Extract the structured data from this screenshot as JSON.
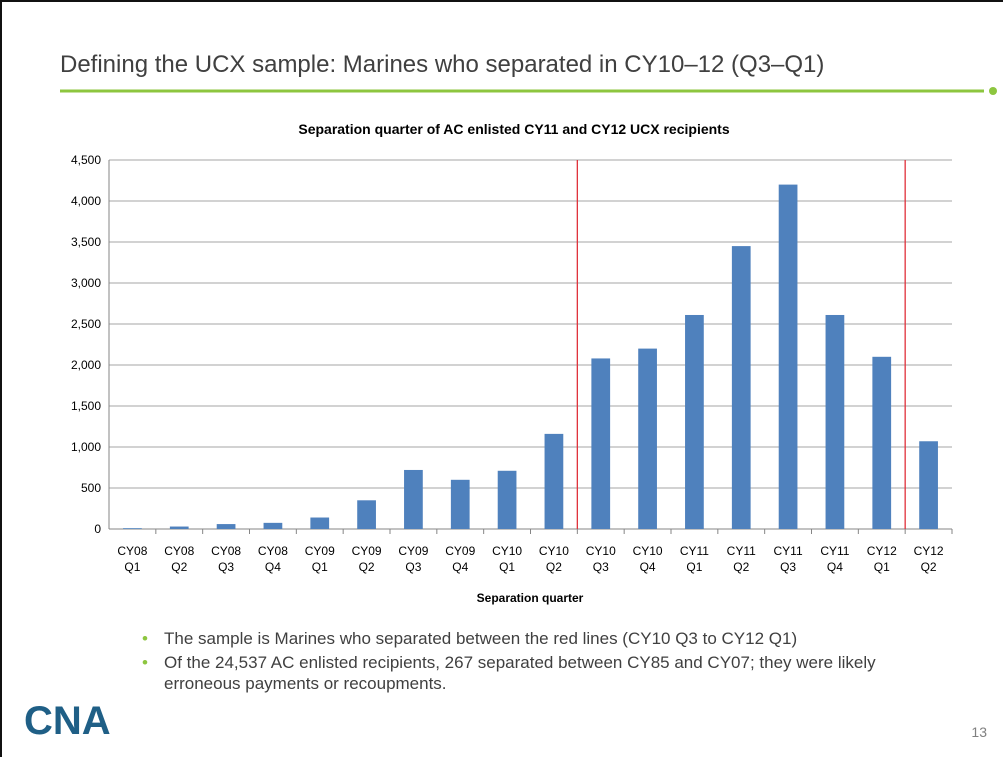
{
  "slide": {
    "title": "Defining the UCX sample: Marines who separated in CY10–12 (Q3–Q1)",
    "bullets": [
      "The sample is Marines who separated between the red lines (CY10 Q3 to CY12 Q1)",
      "Of the 24,537 AC enlisted recipients, 267 separated between CY85 and CY07; they were likely erroneous payments or recoupments."
    ],
    "logo": "CNA",
    "page_number": "13"
  },
  "chart_data": {
    "type": "bar",
    "title": "Separation quarter of AC enlisted CY11 and CY12 UCX recipients",
    "x_label": "Separation quarter",
    "categories": [
      "CY08 Q1",
      "CY08 Q2",
      "CY08 Q3",
      "CY08 Q4",
      "CY09 Q1",
      "CY09 Q2",
      "CY09 Q3",
      "CY09 Q4",
      "CY10 Q1",
      "CY10 Q2",
      "CY10 Q3",
      "CY10 Q4",
      "CY11 Q1",
      "CY11 Q2",
      "CY11 Q3",
      "CY11 Q4",
      "CY12 Q1",
      "CY12 Q2"
    ],
    "values": [
      10,
      30,
      60,
      75,
      140,
      350,
      720,
      600,
      710,
      1160,
      2080,
      2200,
      2610,
      3450,
      4200,
      2610,
      2100,
      1070
    ],
    "color": "#4f81bd",
    "ylim": [
      0,
      4500
    ],
    "yticks": [
      0,
      500,
      {
        "value": 1000,
        "label": "1,000"
      },
      {
        "value": 1500,
        "label": "1,500"
      },
      {
        "value": 2000,
        "label": "2,000"
      },
      {
        "value": 2500,
        "label": "2,500"
      },
      {
        "value": 3000,
        "label": "3,000"
      },
      {
        "value": 3500,
        "label": "3,500"
      },
      {
        "value": 4000,
        "label": "4,000"
      },
      {
        "value": 4500,
        "label": "4,500"
      }
    ],
    "grid": true,
    "reference_lines": [
      {
        "after": "CY10 Q2",
        "color": "#e0303a"
      },
      {
        "after": "CY12 Q1",
        "color": "#e0303a"
      }
    ]
  }
}
